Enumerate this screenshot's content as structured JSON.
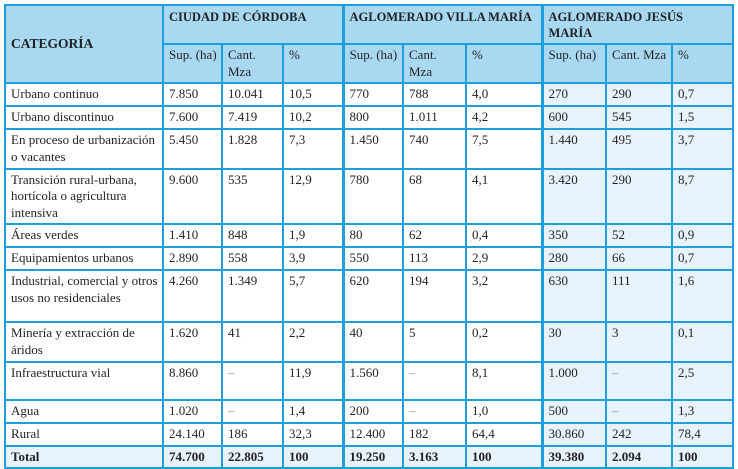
{
  "colors": {
    "border": "#1E9FDB",
    "header_bg": "#A9D8F1",
    "highlight_bg": "#E8F2FA",
    "text": "#1F2124",
    "dash": "#8C8C8C"
  },
  "chart_data": {
    "type": "table",
    "category_header": "CATEGORÍA",
    "groups": [
      {
        "label": "CIUDAD DE CÓRDOBA",
        "subcolumns": [
          "Sup. (ha)",
          "Cant. Mza",
          "%"
        ]
      },
      {
        "label": "AGLOMERADO VILLA MARÍA",
        "subcolumns": [
          "Sup. (ha)",
          "Cant. Mza",
          "%"
        ]
      },
      {
        "label": "AGLOMERADO JESÚS MARÍA",
        "subcolumns": [
          "Sup. (ha)",
          "Cant. Mza",
          "%"
        ]
      }
    ],
    "rows": [
      {
        "category": "Urbano continuo",
        "values": [
          "7.850",
          "10.041",
          "10,5",
          "770",
          "788",
          "4,0",
          "270",
          "290",
          "0,7"
        ]
      },
      {
        "category": "Urbano discontinuo",
        "values": [
          "7.600",
          "7.419",
          "10,2",
          "800",
          "1.011",
          "4,2",
          "600",
          "545",
          "1,5"
        ]
      },
      {
        "category": "En proceso de urbanización o vacantes",
        "values": [
          "5.450",
          "1.828",
          "7,3",
          "1.450",
          "740",
          "7,5",
          "1.440",
          "495",
          "3,7"
        ]
      },
      {
        "category": "Transición rural-urbana, hortícola o agricultura intensiva",
        "values": [
          "9.600",
          "535",
          "12,9",
          "780",
          "68",
          "4,1",
          "3.420",
          "290",
          "8,7"
        ]
      },
      {
        "category": "Áreas verdes",
        "values": [
          "1.410",
          "848",
          "1,9",
          "80",
          "62",
          "0,4",
          "350",
          "52",
          "0,9"
        ]
      },
      {
        "category": "Equipamientos urbanos",
        "values": [
          "2.890",
          "558",
          "3,9",
          "550",
          "113",
          "2,9",
          "280",
          "66",
          "0,7"
        ]
      },
      {
        "category": "Industrial, comercial y otros usos no residenciales",
        "values": [
          "4.260",
          "1.349",
          "5,7",
          "620",
          "194",
          "3,2",
          "630",
          "111",
          "1,6"
        ]
      },
      {
        "category": "Minería y extracción de áridos",
        "values": [
          "1.620",
          "41",
          "2,2",
          "40",
          "5",
          "0,2",
          "30",
          "3",
          "0,1"
        ]
      },
      {
        "category": "Infraestructura vial",
        "values": [
          "8.860",
          "–",
          "11,9",
          "1.560",
          "–",
          "8,1",
          "1.000",
          "–",
          "2,5"
        ]
      },
      {
        "category": "Agua",
        "values": [
          "1.020",
          "–",
          "1,4",
          "200",
          "–",
          "1,0",
          "500",
          "–",
          "1,3"
        ]
      },
      {
        "category": "Rural",
        "values": [
          "24.140",
          "186",
          "32,3",
          "12.400",
          "182",
          "64,4",
          "30.860",
          "242",
          "78,4"
        ]
      }
    ],
    "total_row": {
      "category": "Total",
      "values": [
        "74.700",
        "22.805",
        "100",
        "19.250",
        "3.163",
        "100",
        "39.380",
        "2.094",
        "100"
      ]
    }
  }
}
